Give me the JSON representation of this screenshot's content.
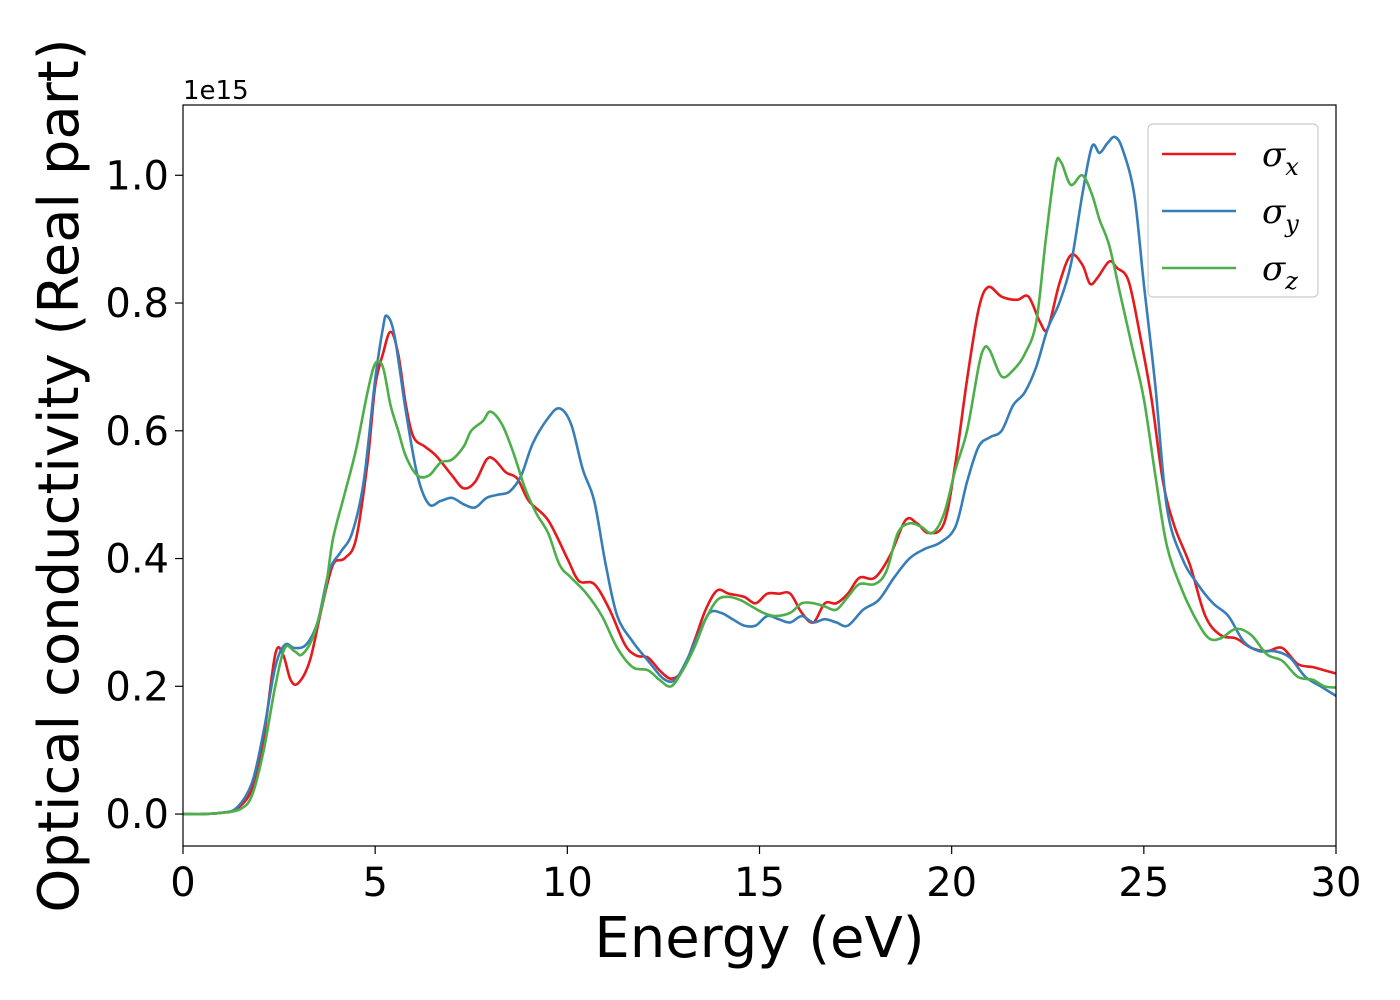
{
  "chart_data": {
    "type": "line",
    "xlabel": "Energy (eV)",
    "ylabel": "Optical conductivity (Real part)",
    "y_offset_label": "1e15",
    "y_scale": 1000000000000000.0,
    "xlim": [
      0,
      30
    ],
    "ylim": [
      -0.05,
      1.11
    ],
    "xticks": [
      0,
      5,
      10,
      15,
      20,
      25,
      30
    ],
    "xtick_labels": [
      "0",
      "5",
      "10",
      "15",
      "20",
      "25",
      "30"
    ],
    "yticks": [
      0.0,
      0.2,
      0.4,
      0.6,
      0.8,
      1.0
    ],
    "ytick_labels": [
      "0.0",
      "0.2",
      "0.4",
      "0.6",
      "0.8",
      "1.0"
    ],
    "grid": false,
    "legend_position": "top-right",
    "series": [
      {
        "name": "σx",
        "symbol": "σ",
        "subscript": "x",
        "color": "#e41a1c",
        "points": [
          [
            0,
            0
          ],
          [
            0.5,
            0
          ],
          [
            1.0,
            0.002
          ],
          [
            1.4,
            0.008
          ],
          [
            1.8,
            0.04
          ],
          [
            2.1,
            0.12
          ],
          [
            2.4,
            0.25
          ],
          [
            2.6,
            0.25
          ],
          [
            2.8,
            0.21
          ],
          [
            3.0,
            0.205
          ],
          [
            3.3,
            0.24
          ],
          [
            3.6,
            0.32
          ],
          [
            3.9,
            0.39
          ],
          [
            4.2,
            0.4
          ],
          [
            4.5,
            0.43
          ],
          [
            4.8,
            0.55
          ],
          [
            5.0,
            0.67
          ],
          [
            5.2,
            0.72
          ],
          [
            5.4,
            0.755
          ],
          [
            5.6,
            0.72
          ],
          [
            5.8,
            0.64
          ],
          [
            6.0,
            0.59
          ],
          [
            6.3,
            0.575
          ],
          [
            6.6,
            0.56
          ],
          [
            7.0,
            0.53
          ],
          [
            7.3,
            0.51
          ],
          [
            7.6,
            0.52
          ],
          [
            7.9,
            0.555
          ],
          [
            8.1,
            0.555
          ],
          [
            8.4,
            0.535
          ],
          [
            8.7,
            0.525
          ],
          [
            9.0,
            0.49
          ],
          [
            9.5,
            0.46
          ],
          [
            10.0,
            0.4
          ],
          [
            10.3,
            0.365
          ],
          [
            10.7,
            0.36
          ],
          [
            11.1,
            0.32
          ],
          [
            11.5,
            0.265
          ],
          [
            11.8,
            0.248
          ],
          [
            12.1,
            0.245
          ],
          [
            12.4,
            0.225
          ],
          [
            12.7,
            0.212
          ],
          [
            13.0,
            0.225
          ],
          [
            13.3,
            0.27
          ],
          [
            13.6,
            0.32
          ],
          [
            13.9,
            0.35
          ],
          [
            14.2,
            0.345
          ],
          [
            14.6,
            0.34
          ],
          [
            14.9,
            0.33
          ],
          [
            15.2,
            0.345
          ],
          [
            15.5,
            0.345
          ],
          [
            15.8,
            0.345
          ],
          [
            16.1,
            0.315
          ],
          [
            16.4,
            0.3
          ],
          [
            16.7,
            0.33
          ],
          [
            17.0,
            0.33
          ],
          [
            17.3,
            0.345
          ],
          [
            17.6,
            0.37
          ],
          [
            18.0,
            0.37
          ],
          [
            18.4,
            0.405
          ],
          [
            18.8,
            0.46
          ],
          [
            19.1,
            0.455
          ],
          [
            19.4,
            0.44
          ],
          [
            19.8,
            0.455
          ],
          [
            20.1,
            0.55
          ],
          [
            20.4,
            0.68
          ],
          [
            20.7,
            0.79
          ],
          [
            20.95,
            0.825
          ],
          [
            21.3,
            0.81
          ],
          [
            21.7,
            0.805
          ],
          [
            22.0,
            0.81
          ],
          [
            22.3,
            0.77
          ],
          [
            22.5,
            0.76
          ],
          [
            22.8,
            0.83
          ],
          [
            23.1,
            0.875
          ],
          [
            23.4,
            0.86
          ],
          [
            23.6,
            0.83
          ],
          [
            23.8,
            0.84
          ],
          [
            24.1,
            0.865
          ],
          [
            24.3,
            0.855
          ],
          [
            24.6,
            0.835
          ],
          [
            24.9,
            0.75
          ],
          [
            25.2,
            0.65
          ],
          [
            25.5,
            0.52
          ],
          [
            25.8,
            0.45
          ],
          [
            26.2,
            0.39
          ],
          [
            26.6,
            0.31
          ],
          [
            27.0,
            0.28
          ],
          [
            27.4,
            0.275
          ],
          [
            27.8,
            0.26
          ],
          [
            28.2,
            0.255
          ],
          [
            28.6,
            0.26
          ],
          [
            29.0,
            0.235
          ],
          [
            29.4,
            0.23
          ],
          [
            29.7,
            0.225
          ],
          [
            30.0,
            0.22
          ]
        ]
      },
      {
        "name": "σy",
        "symbol": "σ",
        "subscript": "y",
        "color": "#377eb8",
        "points": [
          [
            0,
            0
          ],
          [
            0.5,
            0
          ],
          [
            1.0,
            0.002
          ],
          [
            1.4,
            0.01
          ],
          [
            1.8,
            0.05
          ],
          [
            2.1,
            0.13
          ],
          [
            2.4,
            0.23
          ],
          [
            2.65,
            0.265
          ],
          [
            2.9,
            0.26
          ],
          [
            3.2,
            0.265
          ],
          [
            3.5,
            0.3
          ],
          [
            3.8,
            0.38
          ],
          [
            4.1,
            0.41
          ],
          [
            4.4,
            0.44
          ],
          [
            4.7,
            0.52
          ],
          [
            5.0,
            0.68
          ],
          [
            5.2,
            0.76
          ],
          [
            5.3,
            0.78
          ],
          [
            5.5,
            0.75
          ],
          [
            5.8,
            0.63
          ],
          [
            6.1,
            0.53
          ],
          [
            6.4,
            0.485
          ],
          [
            6.7,
            0.49
          ],
          [
            7.0,
            0.495
          ],
          [
            7.3,
            0.485
          ],
          [
            7.6,
            0.48
          ],
          [
            7.9,
            0.495
          ],
          [
            8.2,
            0.5
          ],
          [
            8.5,
            0.505
          ],
          [
            8.8,
            0.53
          ],
          [
            9.1,
            0.58
          ],
          [
            9.5,
            0.62
          ],
          [
            9.8,
            0.635
          ],
          [
            10.1,
            0.61
          ],
          [
            10.4,
            0.54
          ],
          [
            10.7,
            0.49
          ],
          [
            11.0,
            0.39
          ],
          [
            11.3,
            0.31
          ],
          [
            11.7,
            0.27
          ],
          [
            12.1,
            0.24
          ],
          [
            12.5,
            0.212
          ],
          [
            12.8,
            0.21
          ],
          [
            13.1,
            0.24
          ],
          [
            13.4,
            0.28
          ],
          [
            13.7,
            0.315
          ],
          [
            14.0,
            0.315
          ],
          [
            14.3,
            0.305
          ],
          [
            14.6,
            0.295
          ],
          [
            14.9,
            0.295
          ],
          [
            15.2,
            0.31
          ],
          [
            15.5,
            0.305
          ],
          [
            15.8,
            0.3
          ],
          [
            16.1,
            0.31
          ],
          [
            16.4,
            0.3
          ],
          [
            16.7,
            0.305
          ],
          [
            17.0,
            0.3
          ],
          [
            17.3,
            0.295
          ],
          [
            17.7,
            0.32
          ],
          [
            18.1,
            0.335
          ],
          [
            18.5,
            0.37
          ],
          [
            18.9,
            0.4
          ],
          [
            19.3,
            0.415
          ],
          [
            19.7,
            0.425
          ],
          [
            20.1,
            0.45
          ],
          [
            20.4,
            0.52
          ],
          [
            20.7,
            0.575
          ],
          [
            21.0,
            0.59
          ],
          [
            21.3,
            0.6
          ],
          [
            21.6,
            0.64
          ],
          [
            21.9,
            0.66
          ],
          [
            22.2,
            0.7
          ],
          [
            22.5,
            0.76
          ],
          [
            22.8,
            0.8
          ],
          [
            23.1,
            0.86
          ],
          [
            23.4,
            0.97
          ],
          [
            23.65,
            1.045
          ],
          [
            23.85,
            1.035
          ],
          [
            24.05,
            1.05
          ],
          [
            24.25,
            1.06
          ],
          [
            24.45,
            1.04
          ],
          [
            24.75,
            0.97
          ],
          [
            25.0,
            0.83
          ],
          [
            25.3,
            0.67
          ],
          [
            25.6,
            0.48
          ],
          [
            26.0,
            0.4
          ],
          [
            26.4,
            0.36
          ],
          [
            26.8,
            0.33
          ],
          [
            27.2,
            0.31
          ],
          [
            27.6,
            0.27
          ],
          [
            28.0,
            0.255
          ],
          [
            28.4,
            0.255
          ],
          [
            28.8,
            0.245
          ],
          [
            29.2,
            0.215
          ],
          [
            29.6,
            0.2
          ],
          [
            30.0,
            0.185
          ]
        ]
      },
      {
        "name": "σz",
        "symbol": "σ",
        "subscript": "z",
        "color": "#4daf4a",
        "points": [
          [
            0,
            0
          ],
          [
            0.5,
            0
          ],
          [
            1.0,
            0.002
          ],
          [
            1.5,
            0.008
          ],
          [
            1.8,
            0.03
          ],
          [
            2.1,
            0.1
          ],
          [
            2.4,
            0.2
          ],
          [
            2.65,
            0.26
          ],
          [
            2.9,
            0.255
          ],
          [
            3.1,
            0.25
          ],
          [
            3.4,
            0.28
          ],
          [
            3.7,
            0.35
          ],
          [
            3.9,
            0.43
          ],
          [
            4.2,
            0.5
          ],
          [
            4.5,
            0.57
          ],
          [
            4.8,
            0.66
          ],
          [
            5.0,
            0.705
          ],
          [
            5.2,
            0.7
          ],
          [
            5.4,
            0.64
          ],
          [
            5.6,
            0.6
          ],
          [
            5.8,
            0.56
          ],
          [
            6.1,
            0.53
          ],
          [
            6.4,
            0.53
          ],
          [
            6.7,
            0.55
          ],
          [
            7.0,
            0.555
          ],
          [
            7.3,
            0.575
          ],
          [
            7.5,
            0.6
          ],
          [
            7.8,
            0.615
          ],
          [
            8.0,
            0.63
          ],
          [
            8.3,
            0.61
          ],
          [
            8.6,
            0.565
          ],
          [
            8.9,
            0.51
          ],
          [
            9.2,
            0.47
          ],
          [
            9.5,
            0.44
          ],
          [
            9.8,
            0.39
          ],
          [
            10.1,
            0.37
          ],
          [
            10.5,
            0.345
          ],
          [
            10.9,
            0.31
          ],
          [
            11.3,
            0.26
          ],
          [
            11.7,
            0.23
          ],
          [
            12.1,
            0.225
          ],
          [
            12.4,
            0.21
          ],
          [
            12.7,
            0.2
          ],
          [
            13.0,
            0.225
          ],
          [
            13.3,
            0.26
          ],
          [
            13.6,
            0.305
          ],
          [
            13.9,
            0.335
          ],
          [
            14.2,
            0.34
          ],
          [
            14.5,
            0.335
          ],
          [
            14.8,
            0.325
          ],
          [
            15.1,
            0.315
          ],
          [
            15.4,
            0.31
          ],
          [
            15.8,
            0.315
          ],
          [
            16.1,
            0.33
          ],
          [
            16.4,
            0.33
          ],
          [
            16.7,
            0.325
          ],
          [
            17.0,
            0.32
          ],
          [
            17.3,
            0.34
          ],
          [
            17.6,
            0.36
          ],
          [
            18.0,
            0.36
          ],
          [
            18.3,
            0.38
          ],
          [
            18.6,
            0.44
          ],
          [
            18.9,
            0.455
          ],
          [
            19.2,
            0.45
          ],
          [
            19.5,
            0.44
          ],
          [
            19.8,
            0.47
          ],
          [
            20.1,
            0.54
          ],
          [
            20.4,
            0.6
          ],
          [
            20.7,
            0.7
          ],
          [
            20.85,
            0.73
          ],
          [
            21.0,
            0.725
          ],
          [
            21.3,
            0.685
          ],
          [
            21.6,
            0.695
          ],
          [
            21.9,
            0.72
          ],
          [
            22.2,
            0.77
          ],
          [
            22.45,
            0.9
          ],
          [
            22.7,
            1.015
          ],
          [
            22.85,
            1.02
          ],
          [
            23.1,
            0.985
          ],
          [
            23.4,
            1.0
          ],
          [
            23.65,
            0.97
          ],
          [
            23.85,
            0.93
          ],
          [
            24.1,
            0.89
          ],
          [
            24.4,
            0.81
          ],
          [
            24.7,
            0.73
          ],
          [
            25.0,
            0.65
          ],
          [
            25.3,
            0.53
          ],
          [
            25.6,
            0.42
          ],
          [
            26.0,
            0.35
          ],
          [
            26.4,
            0.3
          ],
          [
            26.7,
            0.275
          ],
          [
            27.0,
            0.275
          ],
          [
            27.4,
            0.29
          ],
          [
            27.8,
            0.28
          ],
          [
            28.2,
            0.25
          ],
          [
            28.6,
            0.24
          ],
          [
            29.0,
            0.215
          ],
          [
            29.4,
            0.21
          ],
          [
            29.7,
            0.2
          ],
          [
            30.0,
            0.198
          ]
        ]
      }
    ]
  }
}
